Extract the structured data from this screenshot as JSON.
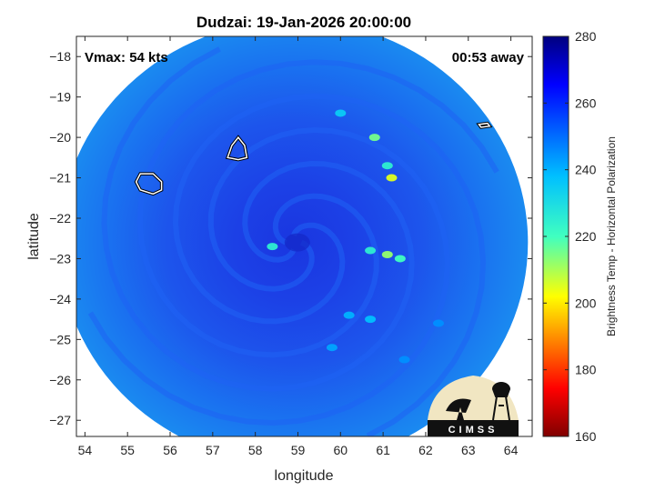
{
  "chart_data": {
    "type": "heatmap",
    "title": "Dudzai: 19-Jan-2026 20:00:00",
    "xlabel": "longitude",
    "ylabel": "latitude",
    "xlim": [
      53.8,
      64.5
    ],
    "ylim": [
      -27.4,
      -17.5
    ],
    "xticks": [
      54,
      55,
      56,
      57,
      58,
      59,
      60,
      61,
      62,
      63,
      64
    ],
    "yticks": [
      -18,
      -19,
      -20,
      -21,
      -22,
      -23,
      -24,
      -25,
      -26,
      -27
    ],
    "annotations": {
      "vmax": "Vmax: 54 kts",
      "time_away": "00:53 away"
    },
    "colorbar": {
      "label": "Brightness Temp - Horizontal Polarization",
      "range": [
        160,
        280
      ],
      "ticks": [
        160,
        180,
        200,
        220,
        240,
        260,
        280
      ],
      "colormap": "jet"
    },
    "center": {
      "lon": 58.9,
      "lat": -22.6
    },
    "swath_radius_deg": 5.5,
    "features": [
      {
        "kind": "cold-spot",
        "lon": 60.0,
        "lat": -19.4,
        "tb": 235
      },
      {
        "kind": "cold-spot",
        "lon": 60.8,
        "lat": -20.0,
        "tb": 215
      },
      {
        "kind": "cold-spot",
        "lon": 61.1,
        "lat": -20.7,
        "tb": 225
      },
      {
        "kind": "cold-spot",
        "lon": 61.2,
        "lat": -21.0,
        "tb": 205
      },
      {
        "kind": "cold-spot",
        "lon": 60.7,
        "lat": -22.8,
        "tb": 225
      },
      {
        "kind": "cold-spot",
        "lon": 61.1,
        "lat": -22.9,
        "tb": 212
      },
      {
        "kind": "cold-spot",
        "lon": 61.4,
        "lat": -23.0,
        "tb": 220
      },
      {
        "kind": "cold-spot",
        "lon": 58.4,
        "lat": -22.7,
        "tb": 225
      },
      {
        "kind": "cold-spot",
        "lon": 60.2,
        "lat": -24.4,
        "tb": 240
      },
      {
        "kind": "cold-spot",
        "lon": 60.7,
        "lat": -24.5,
        "tb": 238
      },
      {
        "kind": "cold-spot",
        "lon": 59.8,
        "lat": -25.2,
        "tb": 242
      },
      {
        "kind": "cold-spot",
        "lon": 61.5,
        "lat": -25.5,
        "tb": 245
      },
      {
        "kind": "cold-spot",
        "lon": 62.3,
        "lat": -24.6,
        "tb": 245
      }
    ],
    "coastlines": [
      {
        "name": "reunion",
        "points": [
          [
            55.3,
            -20.9
          ],
          [
            55.6,
            -20.9
          ],
          [
            55.8,
            -21.1
          ],
          [
            55.8,
            -21.3
          ],
          [
            55.6,
            -21.4
          ],
          [
            55.3,
            -21.3
          ],
          [
            55.2,
            -21.1
          ]
        ]
      },
      {
        "name": "mauritius",
        "points": [
          [
            57.6,
            -20.0
          ],
          [
            57.75,
            -20.2
          ],
          [
            57.8,
            -20.5
          ],
          [
            57.6,
            -20.55
          ],
          [
            57.35,
            -20.5
          ],
          [
            57.45,
            -20.2
          ]
        ]
      },
      {
        "name": "rodrigues",
        "points": [
          [
            63.25,
            -19.68
          ],
          [
            63.45,
            -19.65
          ],
          [
            63.5,
            -19.72
          ],
          [
            63.3,
            -19.75
          ]
        ]
      }
    ]
  },
  "logo": {
    "text": "CIMSS"
  }
}
